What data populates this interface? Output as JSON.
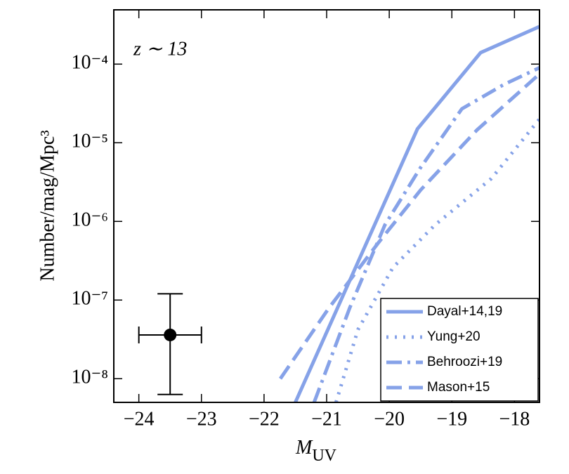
{
  "chart_data": {
    "type": "line",
    "annotation": "z ∼ 13",
    "xlabel": {
      "main": "M",
      "sub": "UV"
    },
    "ylabel": "Number/mag/Mpc³",
    "log_y": true,
    "xlim": [
      -24.4,
      -17.6
    ],
    "ylim": [
      5e-09,
      0.00049
    ],
    "xticks": [
      {
        "value": -24,
        "label": "−24"
      },
      {
        "value": -23,
        "label": "−23"
      },
      {
        "value": -22,
        "label": "−22"
      },
      {
        "value": -21,
        "label": "−21"
      },
      {
        "value": -20,
        "label": "−20"
      },
      {
        "value": -19,
        "label": "−19"
      },
      {
        "value": -18,
        "label": "−18"
      }
    ],
    "yticks": [
      {
        "value": 1e-08,
        "label": "10⁻⁸"
      },
      {
        "value": 1e-07,
        "label": "10⁻⁷"
      },
      {
        "value": 1e-06,
        "label": "10⁻⁶"
      },
      {
        "value": 1e-05,
        "label": "10⁻⁵"
      },
      {
        "value": 0.0001,
        "label": "10⁻⁴"
      }
    ],
    "legend": "lower right",
    "series": [
      {
        "name": "Dayal+14,19",
        "color": "#86a2e8",
        "dash": "solid",
        "x": [
          -21.5,
          -19.55,
          -18.54,
          -17.6
        ],
        "values": [
          5e-09,
          1.5e-05,
          0.00014,
          0.0003
        ]
      },
      {
        "name": "Yung+20",
        "color": "#86a2e8",
        "dash": "dotted",
        "x": [
          -20.85,
          -20.5,
          -19.94,
          -19.27,
          -18.37,
          -17.6
        ],
        "values": [
          5e-09,
          4.2e-08,
          2.6e-07,
          9e-07,
          3.5e-06,
          2e-05
        ]
      },
      {
        "name": "Behroozi+19",
        "color": "#86a2e8",
        "dash": "dashdot",
        "x": [
          -21.2,
          -20.63,
          -20.07,
          -19.51,
          -18.84,
          -18.17,
          -17.6
        ],
        "values": [
          5e-09,
          8e-08,
          9e-07,
          4.7e-06,
          2.7e-05,
          5.5e-05,
          9e-05
        ]
      },
      {
        "name": "Mason+15",
        "color": "#86a2e8",
        "dash": "dashed",
        "x": [
          -21.74,
          -20.96,
          -20.17,
          -19.5,
          -18.6,
          -17.6
        ],
        "values": [
          1e-08,
          8e-08,
          5.4e-07,
          2.5e-06,
          1.45e-05,
          7.5e-05
        ]
      }
    ],
    "points": [
      {
        "x": -23.5,
        "y": 3.6e-08,
        "xlow": -24,
        "xhigh": -23,
        "ylow": 6.3e-09,
        "yhigh": 1.2e-07,
        "color": "#000000"
      }
    ]
  }
}
